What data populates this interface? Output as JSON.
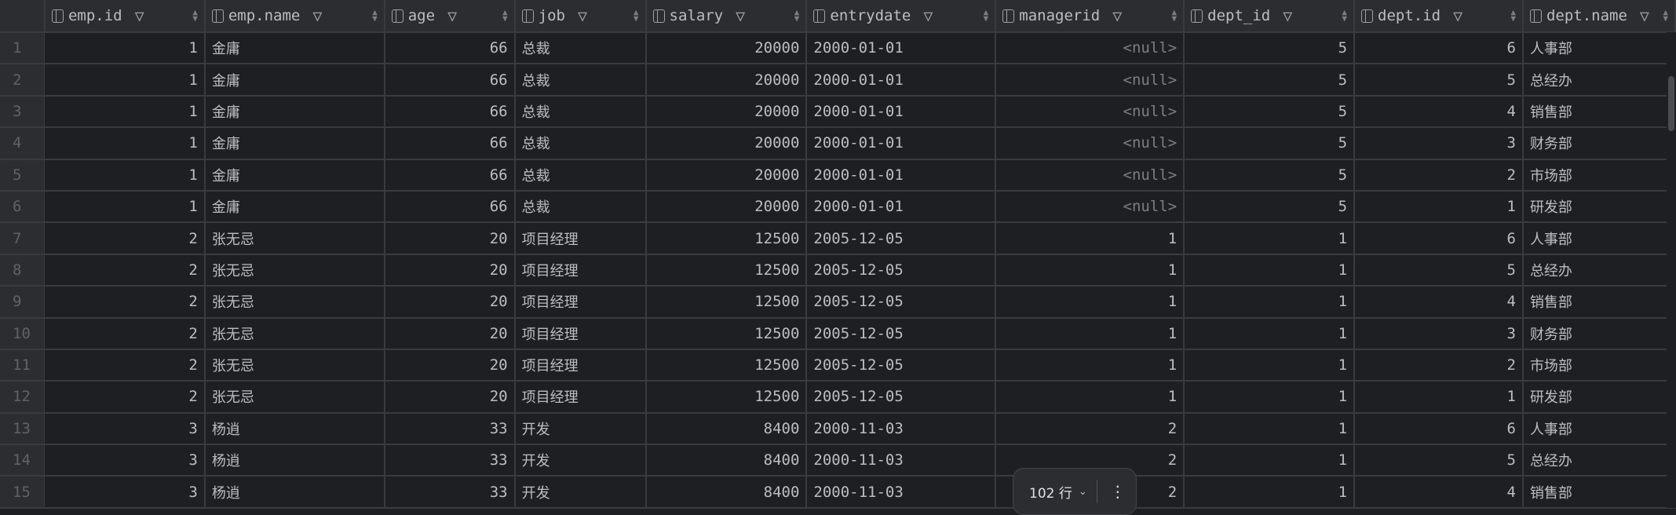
{
  "columns": [
    {
      "label": "emp.id",
      "key": "emp_id",
      "type": "num"
    },
    {
      "label": "emp.name",
      "key": "emp_name",
      "type": "cn"
    },
    {
      "label": "age",
      "key": "age",
      "type": "num"
    },
    {
      "label": "job",
      "key": "job",
      "type": "cn"
    },
    {
      "label": "salary",
      "key": "salary",
      "type": "num"
    },
    {
      "label": "entrydate",
      "key": "entrydate",
      "type": "text"
    },
    {
      "label": "managerid",
      "key": "managerid",
      "type": "num"
    },
    {
      "label": "dept_id",
      "key": "dept_id",
      "type": "num"
    },
    {
      "label": "dept.id",
      "key": "dept_id2",
      "type": "num"
    },
    {
      "label": "dept.name",
      "key": "dept_name",
      "type": "cn"
    }
  ],
  "rows": [
    [
      "1",
      "1",
      "金庸",
      "66",
      "总裁",
      "20000",
      "2000-01-01",
      "<null>",
      "5",
      "6",
      "人事部"
    ],
    [
      "2",
      "1",
      "金庸",
      "66",
      "总裁",
      "20000",
      "2000-01-01",
      "<null>",
      "5",
      "5",
      "总经办"
    ],
    [
      "3",
      "1",
      "金庸",
      "66",
      "总裁",
      "20000",
      "2000-01-01",
      "<null>",
      "5",
      "4",
      "销售部"
    ],
    [
      "4",
      "1",
      "金庸",
      "66",
      "总裁",
      "20000",
      "2000-01-01",
      "<null>",
      "5",
      "3",
      "财务部"
    ],
    [
      "5",
      "1",
      "金庸",
      "66",
      "总裁",
      "20000",
      "2000-01-01",
      "<null>",
      "5",
      "2",
      "市场部"
    ],
    [
      "6",
      "1",
      "金庸",
      "66",
      "总裁",
      "20000",
      "2000-01-01",
      "<null>",
      "5",
      "1",
      "研发部"
    ],
    [
      "7",
      "2",
      "张无忌",
      "20",
      "项目经理",
      "12500",
      "2005-12-05",
      "1",
      "1",
      "6",
      "人事部"
    ],
    [
      "8",
      "2",
      "张无忌",
      "20",
      "项目经理",
      "12500",
      "2005-12-05",
      "1",
      "1",
      "5",
      "总经办"
    ],
    [
      "9",
      "2",
      "张无忌",
      "20",
      "项目经理",
      "12500",
      "2005-12-05",
      "1",
      "1",
      "4",
      "销售部"
    ],
    [
      "10",
      "2",
      "张无忌",
      "20",
      "项目经理",
      "12500",
      "2005-12-05",
      "1",
      "1",
      "3",
      "财务部"
    ],
    [
      "11",
      "2",
      "张无忌",
      "20",
      "项目经理",
      "12500",
      "2005-12-05",
      "1",
      "1",
      "2",
      "市场部"
    ],
    [
      "12",
      "2",
      "张无忌",
      "20",
      "项目经理",
      "12500",
      "2005-12-05",
      "1",
      "1",
      "1",
      "研发部"
    ],
    [
      "13",
      "3",
      "杨逍",
      "33",
      "开发",
      "8400",
      "2000-11-03",
      "2",
      "1",
      "6",
      "人事部"
    ],
    [
      "14",
      "3",
      "杨逍",
      "33",
      "开发",
      "8400",
      "2000-11-03",
      "2",
      "1",
      "5",
      "总经办"
    ],
    [
      "15",
      "3",
      "杨逍",
      "33",
      "开发",
      "8400",
      "2000-11-03",
      "2",
      "1",
      "4",
      "销售部"
    ]
  ],
  "footer": {
    "row_count": "102 行",
    "more_icon": "vertical-ellipsis-icon",
    "dropdown_icon": "chevron-down-icon"
  }
}
